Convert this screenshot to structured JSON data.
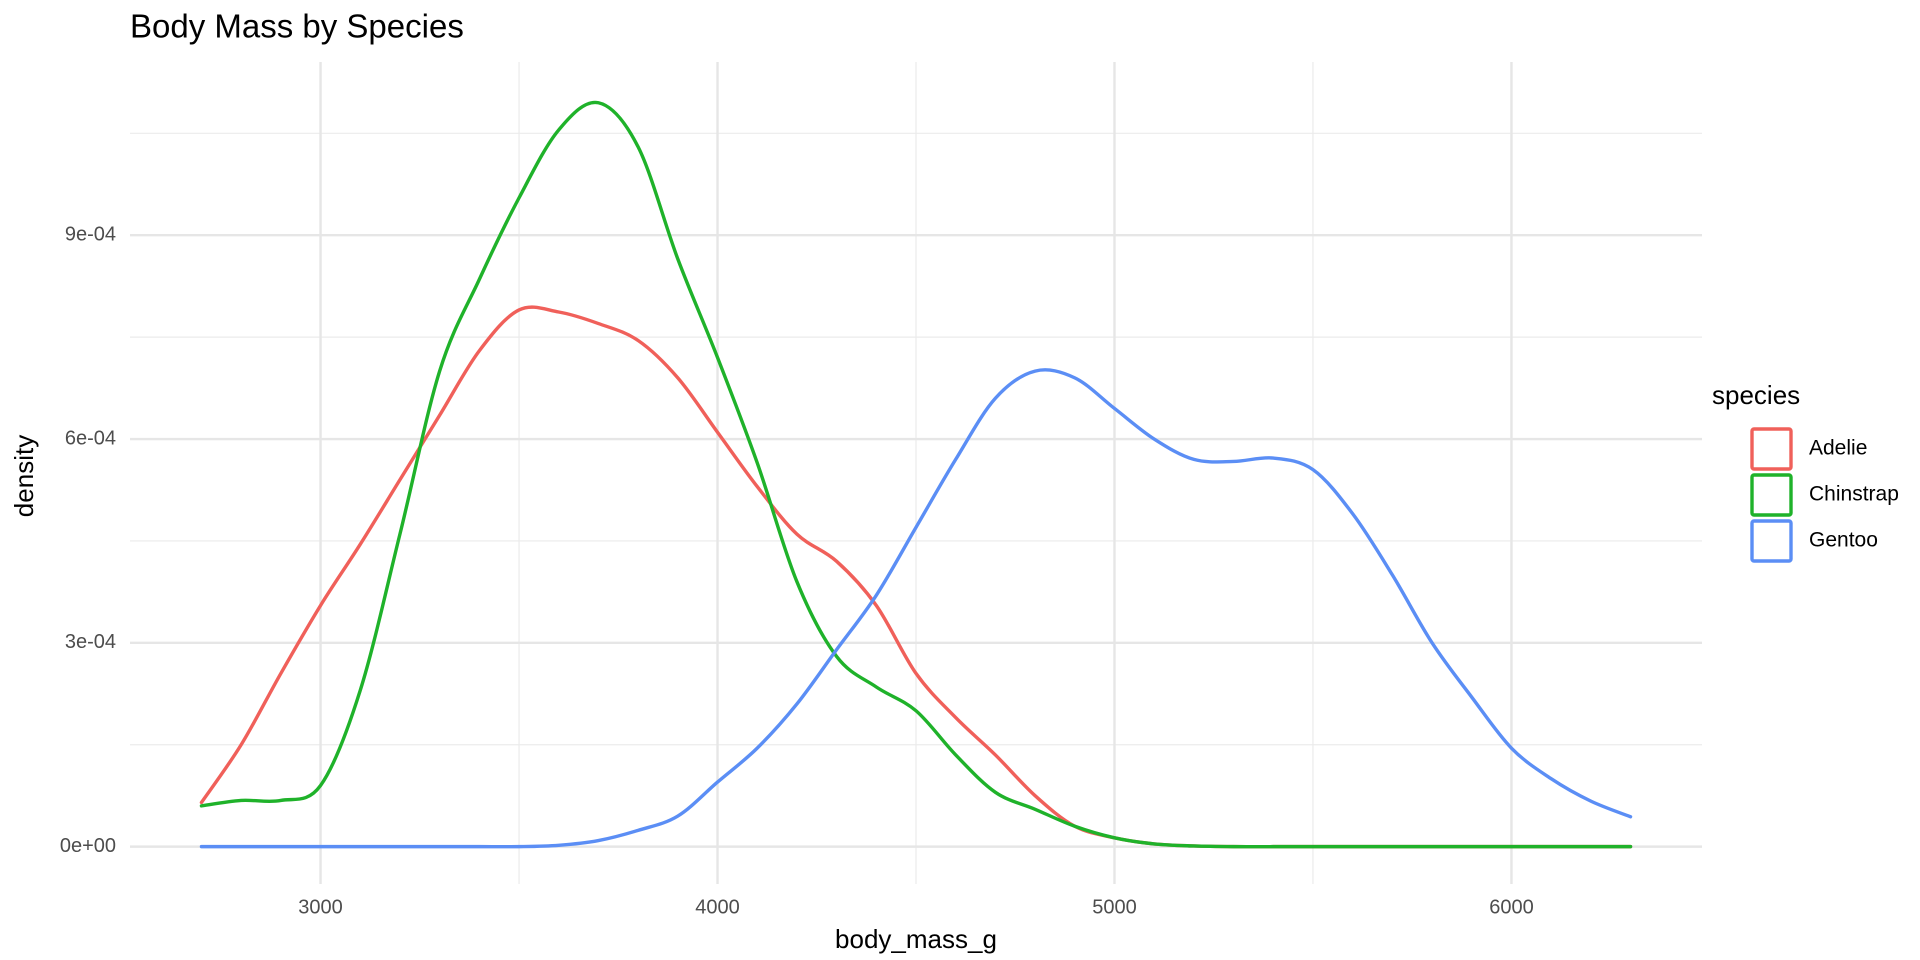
{
  "chart_data": {
    "type": "line",
    "title": "Body Mass by Species",
    "x_label": "body_mass_g",
    "y_label": "density",
    "legend_title": "species",
    "legend_position": "right",
    "grid": true,
    "xlim": [
      2520,
      6480
    ],
    "ylim": [
      -5.5e-05,
      0.001155
    ],
    "xticks": [
      3000,
      4000,
      5000,
      6000
    ],
    "xminorticks": [
      3500,
      4500,
      5500
    ],
    "yticks": [
      {
        "value": 0,
        "label": "0e+00"
      },
      {
        "value": 0.0003,
        "label": "3e-04"
      },
      {
        "value": 0.0006,
        "label": "6e-04"
      },
      {
        "value": 0.0009,
        "label": "9e-04"
      }
    ],
    "yminorticks": [
      0.00015,
      0.00045,
      0.00075,
      0.00105
    ],
    "x": [
      2700,
      2800,
      2900,
      3000,
      3100,
      3200,
      3300,
      3400,
      3500,
      3600,
      3700,
      3800,
      3900,
      4000,
      4100,
      4200,
      4300,
      4400,
      4500,
      4600,
      4700,
      4800,
      4900,
      5000,
      5100,
      5200,
      5300,
      5400,
      5500,
      5600,
      5700,
      5800,
      5900,
      6000,
      6100,
      6200,
      6300
    ],
    "series": [
      {
        "name": "Adelie",
        "color": "#f0605a",
        "values": [
          6.5e-05,
          0.00015,
          0.000255,
          0.000355,
          0.000445,
          0.00054,
          0.000635,
          0.00073,
          0.00079,
          0.000787,
          0.00077,
          0.000745,
          0.00069,
          0.00061,
          0.00053,
          0.00046,
          0.00042,
          0.000355,
          0.000255,
          0.00019,
          0.000135,
          7.5e-05,
          3e-05,
          1.3e-05,
          4e-06,
          1e-06,
          0,
          0,
          0,
          0,
          0,
          0,
          0,
          0,
          0,
          0,
          0
        ]
      },
      {
        "name": "Chinstrap",
        "color": "#1fb22a",
        "values": [
          6e-05,
          6.8e-05,
          6.8e-05,
          9e-05,
          0.00023,
          0.00046,
          0.0007,
          0.000835,
          0.000955,
          0.001055,
          0.001095,
          0.00103,
          0.000865,
          0.00072,
          0.000565,
          0.00039,
          0.00028,
          0.000235,
          0.0002,
          0.000135,
          8e-05,
          5.5e-05,
          3e-05,
          1.3e-05,
          4e-06,
          1e-06,
          0,
          0,
          0,
          0,
          0,
          0,
          0,
          0,
          0,
          0,
          0
        ]
      },
      {
        "name": "Gentoo",
        "color": "#5b8ef5",
        "values": [
          0,
          0,
          0,
          0,
          0,
          0,
          0,
          0,
          0,
          2e-06,
          9e-06,
          2.4e-05,
          4.5e-05,
          9.5e-05,
          0.000145,
          0.00021,
          0.00029,
          0.00037,
          0.00047,
          0.00057,
          0.00066,
          0.0007,
          0.00069,
          0.000645,
          0.0006,
          0.00057,
          0.000567,
          0.000572,
          0.000555,
          0.00049,
          0.0004,
          0.0003,
          0.00022,
          0.000145,
          0.0001,
          6.7e-05,
          4.4e-05
        ]
      }
    ]
  }
}
